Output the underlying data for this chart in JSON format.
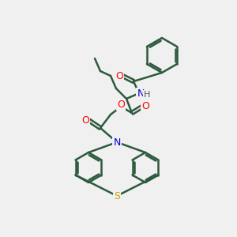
{
  "bg_color": "#f0f0f0",
  "bond_color": "#2d5a3d",
  "bond_width": 1.8,
  "atom_colors": {
    "O": "#ff0000",
    "N": "#0000cc",
    "S": "#ccaa00",
    "H": "#555555",
    "C": "#2d5a3d"
  },
  "figsize": [
    3.0,
    3.0
  ],
  "dpi": 100
}
